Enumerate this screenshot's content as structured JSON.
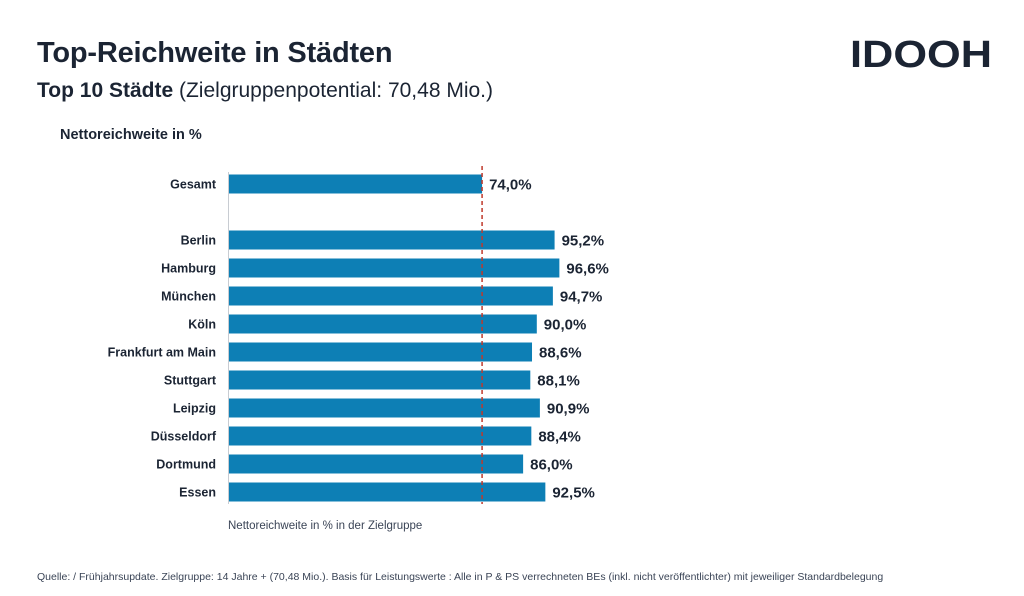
{
  "header": {
    "title": "Top-Reichweite in Städten",
    "subtitle_bold": "Top 10 Städte",
    "subtitle_rest": "(Zielgruppenpotential: 70,48 Mio.)"
  },
  "logo": {
    "text": "IDOOH",
    "color": "#1b2433"
  },
  "chart_data": {
    "type": "bar",
    "orientation": "horizontal",
    "title": "Nettoreichweite in %",
    "xlabel": "Nettoreichweite in % in der Zielgruppe",
    "categories": [
      "Gesamt",
      "Berlin",
      "Hamburg",
      "München",
      "Köln",
      "Frankfurt am Main",
      "Stuttgart",
      "Leipzig",
      "Düsseldorf",
      "Dortmund",
      "Essen"
    ],
    "values": [
      74.0,
      95.2,
      96.6,
      94.7,
      90.0,
      88.6,
      88.1,
      90.9,
      88.4,
      86.0,
      92.5
    ],
    "value_labels": [
      "74,0%",
      "95,2%",
      "96,6%",
      "94,7%",
      "90,0%",
      "88,6%",
      "88,1%",
      "90,9%",
      "88,4%",
      "86,0%",
      "92,5%"
    ],
    "reference_line": {
      "value": 74.0,
      "style": "dashed",
      "color": "#c0392b"
    },
    "xlim": [
      0,
      100
    ],
    "bar_color": "#0d7fb5",
    "grid": false,
    "legend": "none"
  },
  "footer": {
    "source": "Quelle: / Frühjahrsupdate. Zielgruppe: 14 Jahre + (70,48 Mio.). Basis für Leistungswerte : Alle in P & PS verrechneten BEs (inkl. nicht veröffentlichter)  mit jeweiliger Standardbelegung"
  }
}
